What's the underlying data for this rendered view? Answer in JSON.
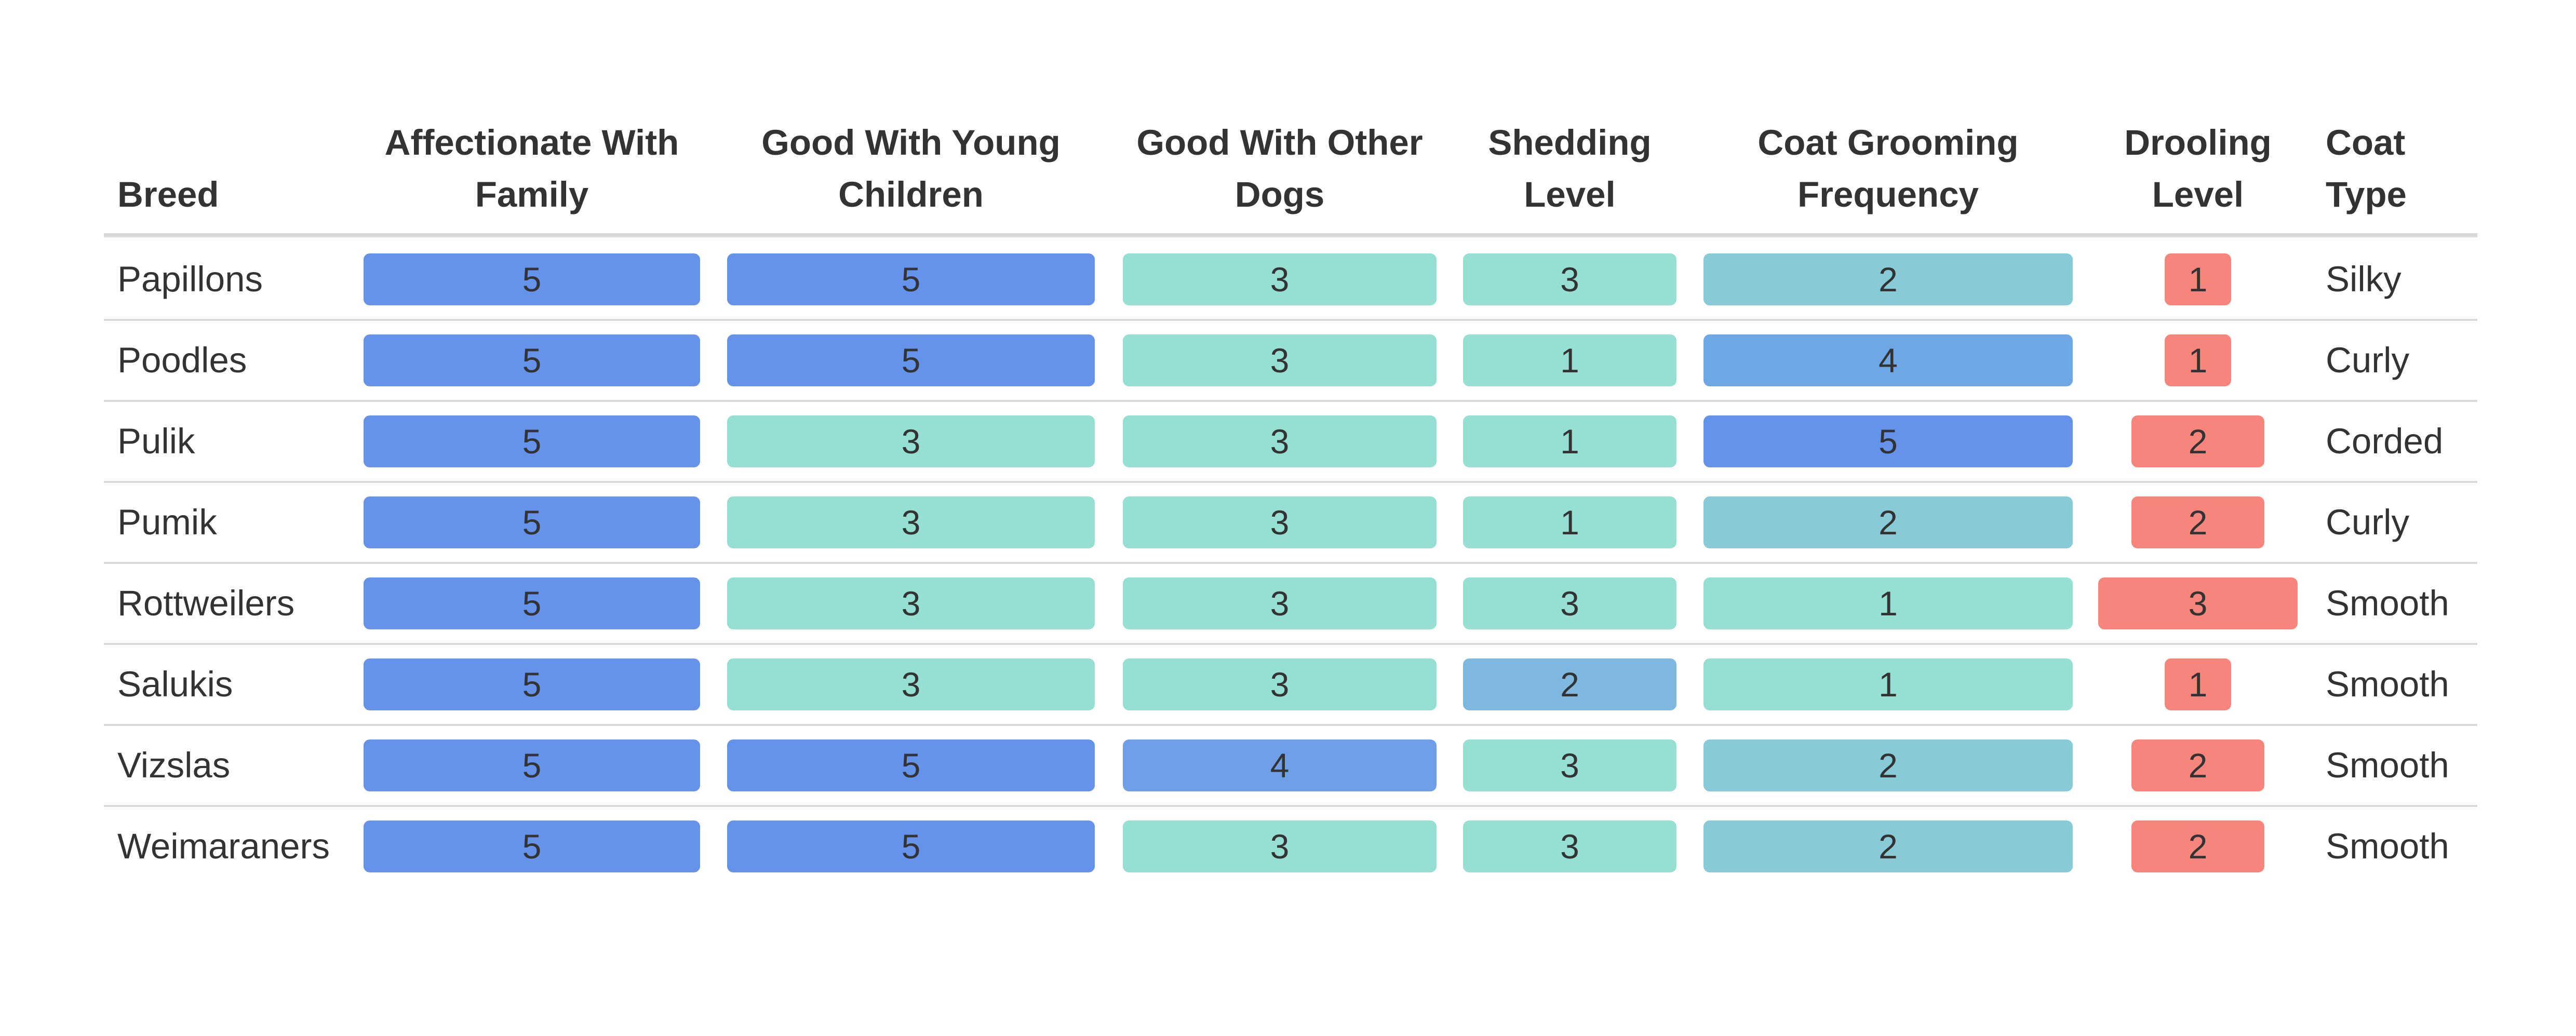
{
  "chart_data": {
    "type": "table",
    "columns": [
      {
        "key": "breed",
        "label": [
          "Breed"
        ],
        "kind": "text"
      },
      {
        "key": "affectionate",
        "label": [
          "Affectionate With",
          "Family"
        ],
        "kind": "bar"
      },
      {
        "key": "young_children",
        "label": [
          "Good With Young",
          "Children"
        ],
        "kind": "bar"
      },
      {
        "key": "other_dogs",
        "label": [
          "Good With Other",
          "Dogs"
        ],
        "kind": "bar"
      },
      {
        "key": "shedding",
        "label": [
          "Shedding",
          "Level"
        ],
        "kind": "bar"
      },
      {
        "key": "grooming",
        "label": [
          "Coat Grooming",
          "Frequency"
        ],
        "kind": "bar"
      },
      {
        "key": "drooling",
        "label": [
          "Drooling",
          "Level"
        ],
        "kind": "bar"
      },
      {
        "key": "coat_type",
        "label": [
          "Coat",
          "Type"
        ],
        "kind": "text"
      }
    ],
    "rows": [
      {
        "breed": "Papillons",
        "affectionate": 5,
        "young_children": 5,
        "other_dogs": 3,
        "shedding": 3,
        "grooming": 2,
        "drooling": 1,
        "coat_type": "Silky"
      },
      {
        "breed": "Poodles",
        "affectionate": 5,
        "young_children": 5,
        "other_dogs": 3,
        "shedding": 1,
        "grooming": 4,
        "drooling": 1,
        "coat_type": "Curly"
      },
      {
        "breed": "Pulik",
        "affectionate": 5,
        "young_children": 3,
        "other_dogs": 3,
        "shedding": 1,
        "grooming": 5,
        "drooling": 2,
        "coat_type": "Corded"
      },
      {
        "breed": "Pumik",
        "affectionate": 5,
        "young_children": 3,
        "other_dogs": 3,
        "shedding": 1,
        "grooming": 2,
        "drooling": 2,
        "coat_type": "Curly"
      },
      {
        "breed": "Rottweilers",
        "affectionate": 5,
        "young_children": 3,
        "other_dogs": 3,
        "shedding": 3,
        "grooming": 1,
        "drooling": 3,
        "coat_type": "Smooth"
      },
      {
        "breed": "Salukis",
        "affectionate": 5,
        "young_children": 3,
        "other_dogs": 3,
        "shedding": 2,
        "grooming": 1,
        "drooling": 1,
        "coat_type": "Smooth"
      },
      {
        "breed": "Vizslas",
        "affectionate": 5,
        "young_children": 5,
        "other_dogs": 4,
        "shedding": 3,
        "grooming": 2,
        "drooling": 2,
        "coat_type": "Smooth"
      },
      {
        "breed": "Weimaraners",
        "affectionate": 5,
        "young_children": 5,
        "other_dogs": 3,
        "shedding": 3,
        "grooming": 2,
        "drooling": 2,
        "coat_type": "Smooth"
      }
    ],
    "value_range": [
      1,
      5
    ],
    "colors": {
      "score_1": "#96E0D3",
      "score_2": "#7FB8DE",
      "score_3": "#96E0D3",
      "score_4": "#6F9FE6",
      "score_5": "#6593EB",
      "grooming_1": "#96E0D3",
      "grooming_2": "#87CAD8",
      "grooming_4": "#6FA6E6",
      "grooming_5": "#6593EB",
      "drooling": "#F7857B"
    },
    "grid": false
  }
}
